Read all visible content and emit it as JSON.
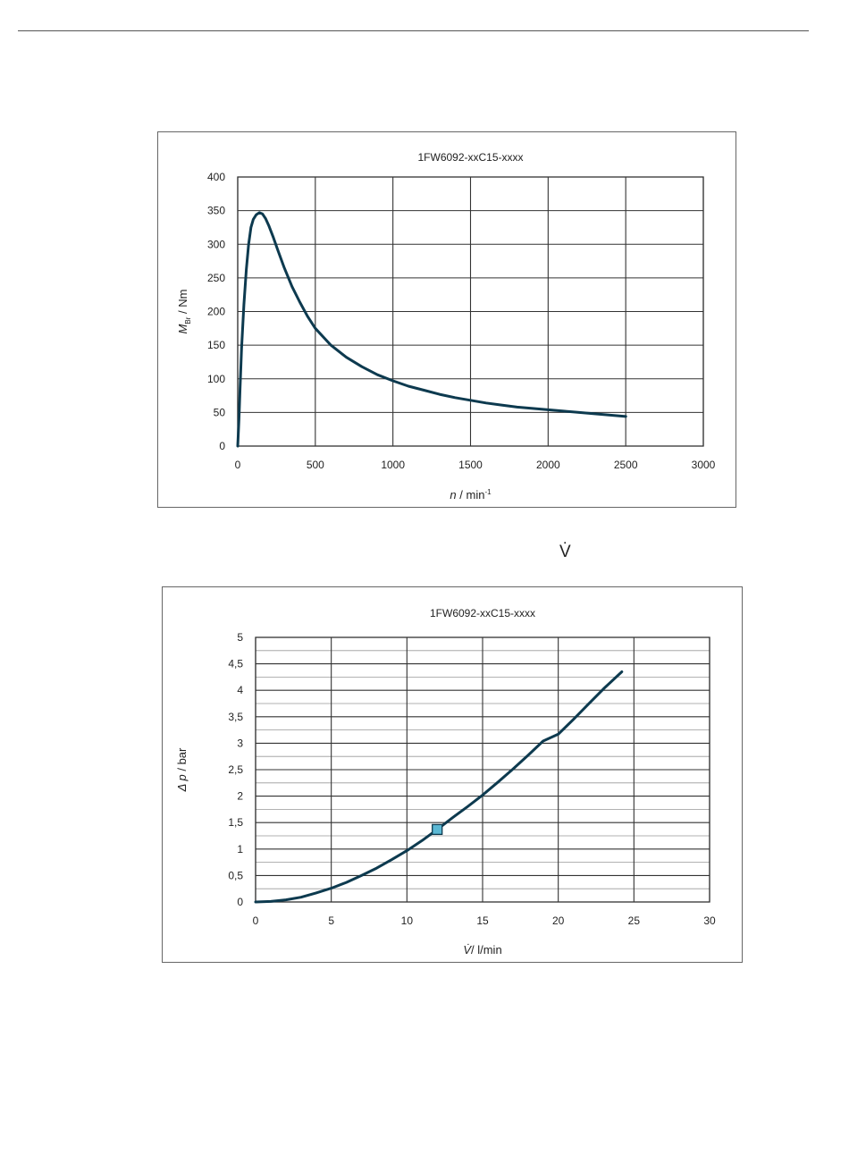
{
  "top_symbol": "V̇",
  "chart_data": [
    {
      "type": "line",
      "title": "1FW6092-xxC15-xxxx",
      "xlabel": {
        "var": "n",
        "rest": " / min",
        "sup": "-1"
      },
      "ylabel": {
        "var": "M",
        "sub": "Br",
        "rest": " / Nm"
      },
      "xlim": [
        0,
        3000
      ],
      "ylim": [
        0,
        400
      ],
      "xticks": [
        0,
        500,
        1000,
        1500,
        2000,
        2500,
        3000
      ],
      "yticks": [
        0,
        50,
        100,
        150,
        200,
        250,
        300,
        350,
        400
      ],
      "xtick_labels": [
        "0",
        "500",
        "1000",
        "1500",
        "2000",
        "2500",
        "3000"
      ],
      "ytick_labels": [
        "0",
        "50",
        "100",
        "150",
        "200",
        "250",
        "300",
        "350",
        "400"
      ],
      "grid": true,
      "minor_grid": false,
      "line_color": "#0d3a4f",
      "series": [
        {
          "x": [
            0,
            8,
            15,
            25,
            40,
            55,
            70,
            85,
            100,
            120,
            140,
            160,
            180,
            200,
            230,
            260,
            300,
            350,
            400,
            450,
            500,
            600,
            700,
            800,
            900,
            1000,
            1100,
            1200,
            1300,
            1400,
            1500,
            1600,
            1700,
            1800,
            1900,
            2000,
            2100,
            2200,
            2300,
            2400,
            2500
          ],
          "y": [
            0,
            40,
            85,
            145,
            210,
            262,
            300,
            325,
            337,
            344,
            347,
            345,
            338,
            328,
            310,
            290,
            265,
            237,
            214,
            193,
            175,
            150,
            132,
            118,
            106,
            97,
            89,
            83,
            77,
            72,
            68,
            64,
            61,
            58,
            56,
            54,
            52,
            50,
            48,
            46,
            44
          ]
        }
      ]
    },
    {
      "type": "line",
      "title": "1FW6092-xxC15-xxxx",
      "xlabel": {
        "var": "V̇",
        "rest": "/ l/min"
      },
      "ylabel": {
        "var": "Δ p",
        "rest": " / bar"
      },
      "xlim": [
        0,
        30
      ],
      "ylim": [
        0,
        5
      ],
      "xticks": [
        0,
        5,
        10,
        15,
        20,
        25,
        30
      ],
      "yticks": [
        0,
        0.5,
        1,
        1.5,
        2,
        2.5,
        3,
        3.5,
        4,
        4.5,
        5
      ],
      "xtick_labels": [
        "0",
        "5",
        "10",
        "15",
        "20",
        "25",
        "30"
      ],
      "ytick_labels": [
        "0",
        "0,5",
        "1",
        "1,5",
        "2",
        "2,5",
        "3",
        "3,5",
        "4",
        "4,5",
        "5"
      ],
      "grid": true,
      "minor_grid": true,
      "line_color": "#0d3a4f",
      "series": [
        {
          "x": [
            0,
            1,
            2,
            3,
            4,
            5,
            6,
            7,
            8,
            9,
            10,
            11,
            12,
            13,
            14,
            15,
            16,
            17,
            18,
            19,
            20,
            21,
            22,
            23,
            24.2
          ],
          "y": [
            0,
            0.01,
            0.04,
            0.09,
            0.17,
            0.26,
            0.37,
            0.5,
            0.64,
            0.8,
            0.97,
            1.16,
            1.37,
            1.59,
            1.8,
            2.02,
            2.26,
            2.51,
            2.77,
            3.04,
            3.17,
            3.45,
            3.74,
            4.03,
            4.35
          ]
        }
      ],
      "marker": {
        "x": 12,
        "y": 1.37,
        "color": "#5bb8d4"
      }
    }
  ]
}
